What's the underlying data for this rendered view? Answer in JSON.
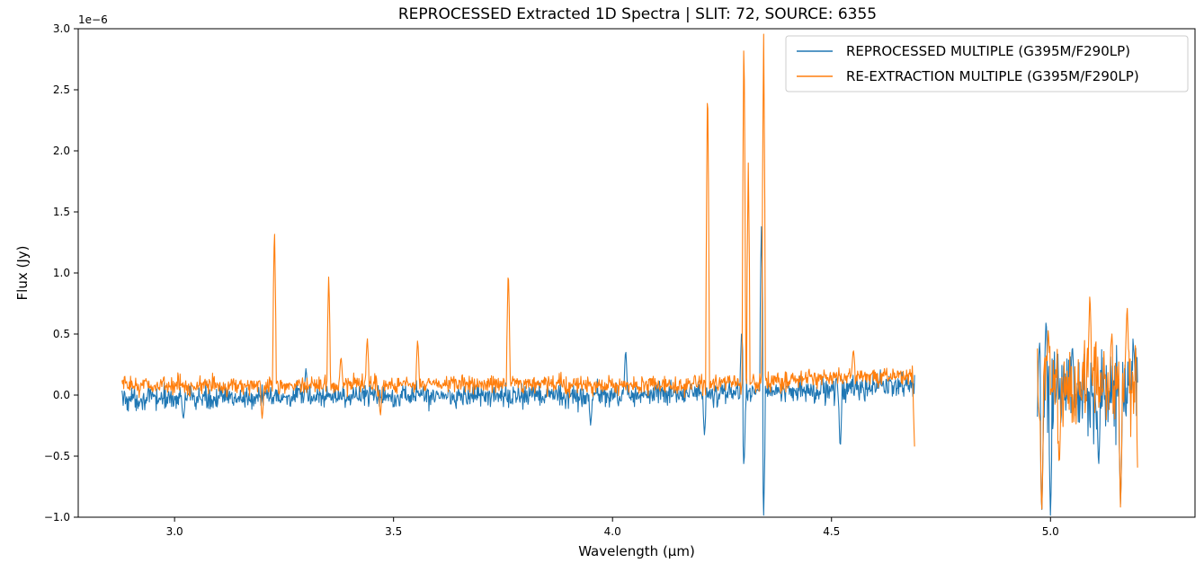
{
  "chart_data": {
    "type": "line",
    "title": "REPROCESSED Extracted 1D Spectra | SLIT: 72, SOURCE: 6355",
    "xlabel": "Wavelength (µm)",
    "ylabel": "Flux (Jy)",
    "y_scale_label": "1e−6",
    "xlim": [
      2.78,
      5.33
    ],
    "ylim": [
      -1.0,
      3.0
    ],
    "x_ticks": [
      3.0,
      3.5,
      4.0,
      4.5,
      5.0
    ],
    "x_tick_labels": [
      "3.0",
      "3.5",
      "4.0",
      "4.5",
      "5.0"
    ],
    "y_ticks": [
      -1.0,
      -0.5,
      0.0,
      0.5,
      1.0,
      1.5,
      2.0,
      2.5,
      3.0
    ],
    "y_tick_labels": [
      "−1.0",
      "−0.5",
      "0.0",
      "0.5",
      "1.0",
      "1.5",
      "2.0",
      "2.5",
      "3.0"
    ],
    "grid": false,
    "legend_position": "top-right",
    "series": [
      {
        "name": "REPROCESSED MULTIPLE (G395M/F290LP)",
        "color": "#1f77b4",
        "segments": [
          {
            "x_range": [
              2.88,
              4.69
            ],
            "baseline_points": [
              [
                2.88,
                -0.03
              ],
              [
                3.2,
                -0.02
              ],
              [
                3.5,
                0.0
              ],
              [
                3.8,
                -0.01
              ],
              [
                4.0,
                0.0
              ],
              [
                4.3,
                0.02
              ],
              [
                4.5,
                0.05
              ],
              [
                4.69,
                0.08
              ]
            ],
            "noise_amplitude": 0.09,
            "features": [
              {
                "x": 3.02,
                "flux": -0.2
              },
              {
                "x": 3.3,
                "flux": 0.22
              },
              {
                "x": 3.95,
                "flux": -0.25
              },
              {
                "x": 4.03,
                "flux": 0.38
              },
              {
                "x": 4.21,
                "flux": -0.33
              },
              {
                "x": 4.295,
                "flux": 0.55
              },
              {
                "x": 4.3,
                "flux": -0.6
              },
              {
                "x": 4.34,
                "flux": 1.4
              },
              {
                "x": 4.345,
                "flux": -1.0
              },
              {
                "x": 4.52,
                "flux": -0.45
              }
            ]
          },
          {
            "x_range": [
              4.97,
              5.2
            ],
            "baseline_points": [
              [
                4.97,
                0.0
              ],
              [
                5.08,
                0.02
              ],
              [
                5.2,
                0.05
              ]
            ],
            "noise_amplitude": 0.32,
            "features": [
              {
                "x": 4.975,
                "flux": 0.44
              },
              {
                "x": 4.99,
                "flux": 0.64
              },
              {
                "x": 4.98,
                "flux": -1.0
              },
              {
                "x": 5.0,
                "flux": -1.0
              },
              {
                "x": 5.05,
                "flux": 0.42
              },
              {
                "x": 5.11,
                "flux": -0.6
              },
              {
                "x": 5.16,
                "flux": -0.92
              },
              {
                "x": 5.19,
                "flux": 0.4
              }
            ]
          }
        ]
      },
      {
        "name": "RE-EXTRACTION MULTIPLE (G395M/F290LP)",
        "color": "#ff7f0e",
        "segments": [
          {
            "x_range": [
              2.88,
              4.69
            ],
            "baseline_points": [
              [
                2.88,
                0.08
              ],
              [
                3.2,
                0.08
              ],
              [
                3.5,
                0.08
              ],
              [
                3.8,
                0.1
              ],
              [
                4.0,
                0.07
              ],
              [
                4.3,
                0.1
              ],
              [
                4.5,
                0.15
              ],
              [
                4.69,
                0.15
              ]
            ],
            "noise_amplitude": 0.07,
            "features": [
              {
                "x": 3.2,
                "flux": -0.2
              },
              {
                "x": 3.228,
                "flux": 1.4
              },
              {
                "x": 3.352,
                "flux": 0.98
              },
              {
                "x": 3.38,
                "flux": 0.32
              },
              {
                "x": 3.44,
                "flux": 0.48
              },
              {
                "x": 3.47,
                "flux": -0.17
              },
              {
                "x": 3.555,
                "flux": 0.46
              },
              {
                "x": 3.762,
                "flux": 1.05
              },
              {
                "x": 4.217,
                "flux": 2.63
              },
              {
                "x": 4.3,
                "flux": 3.0
              },
              {
                "x": 4.31,
                "flux": 1.9
              },
              {
                "x": 4.345,
                "flux": 3.0
              },
              {
                "x": 4.55,
                "flux": 0.38
              },
              {
                "x": 4.69,
                "flux": -0.46
              }
            ]
          },
          {
            "x_range": [
              4.97,
              5.2
            ],
            "baseline_points": [
              [
                4.97,
                0.05
              ],
              [
                5.08,
                0.1
              ],
              [
                5.2,
                0.12
              ]
            ],
            "noise_amplitude": 0.3,
            "features": [
              {
                "x": 4.975,
                "flux": -0.2
              },
              {
                "x": 4.98,
                "flux": -1.0
              },
              {
                "x": 4.995,
                "flux": 0.55
              },
              {
                "x": 5.02,
                "flux": -0.6
              },
              {
                "x": 5.09,
                "flux": 0.85
              },
              {
                "x": 5.14,
                "flux": 0.52
              },
              {
                "x": 5.16,
                "flux": -0.95
              },
              {
                "x": 5.175,
                "flux": 0.75
              },
              {
                "x": 5.2,
                "flux": -0.77
              }
            ]
          }
        ]
      }
    ]
  }
}
